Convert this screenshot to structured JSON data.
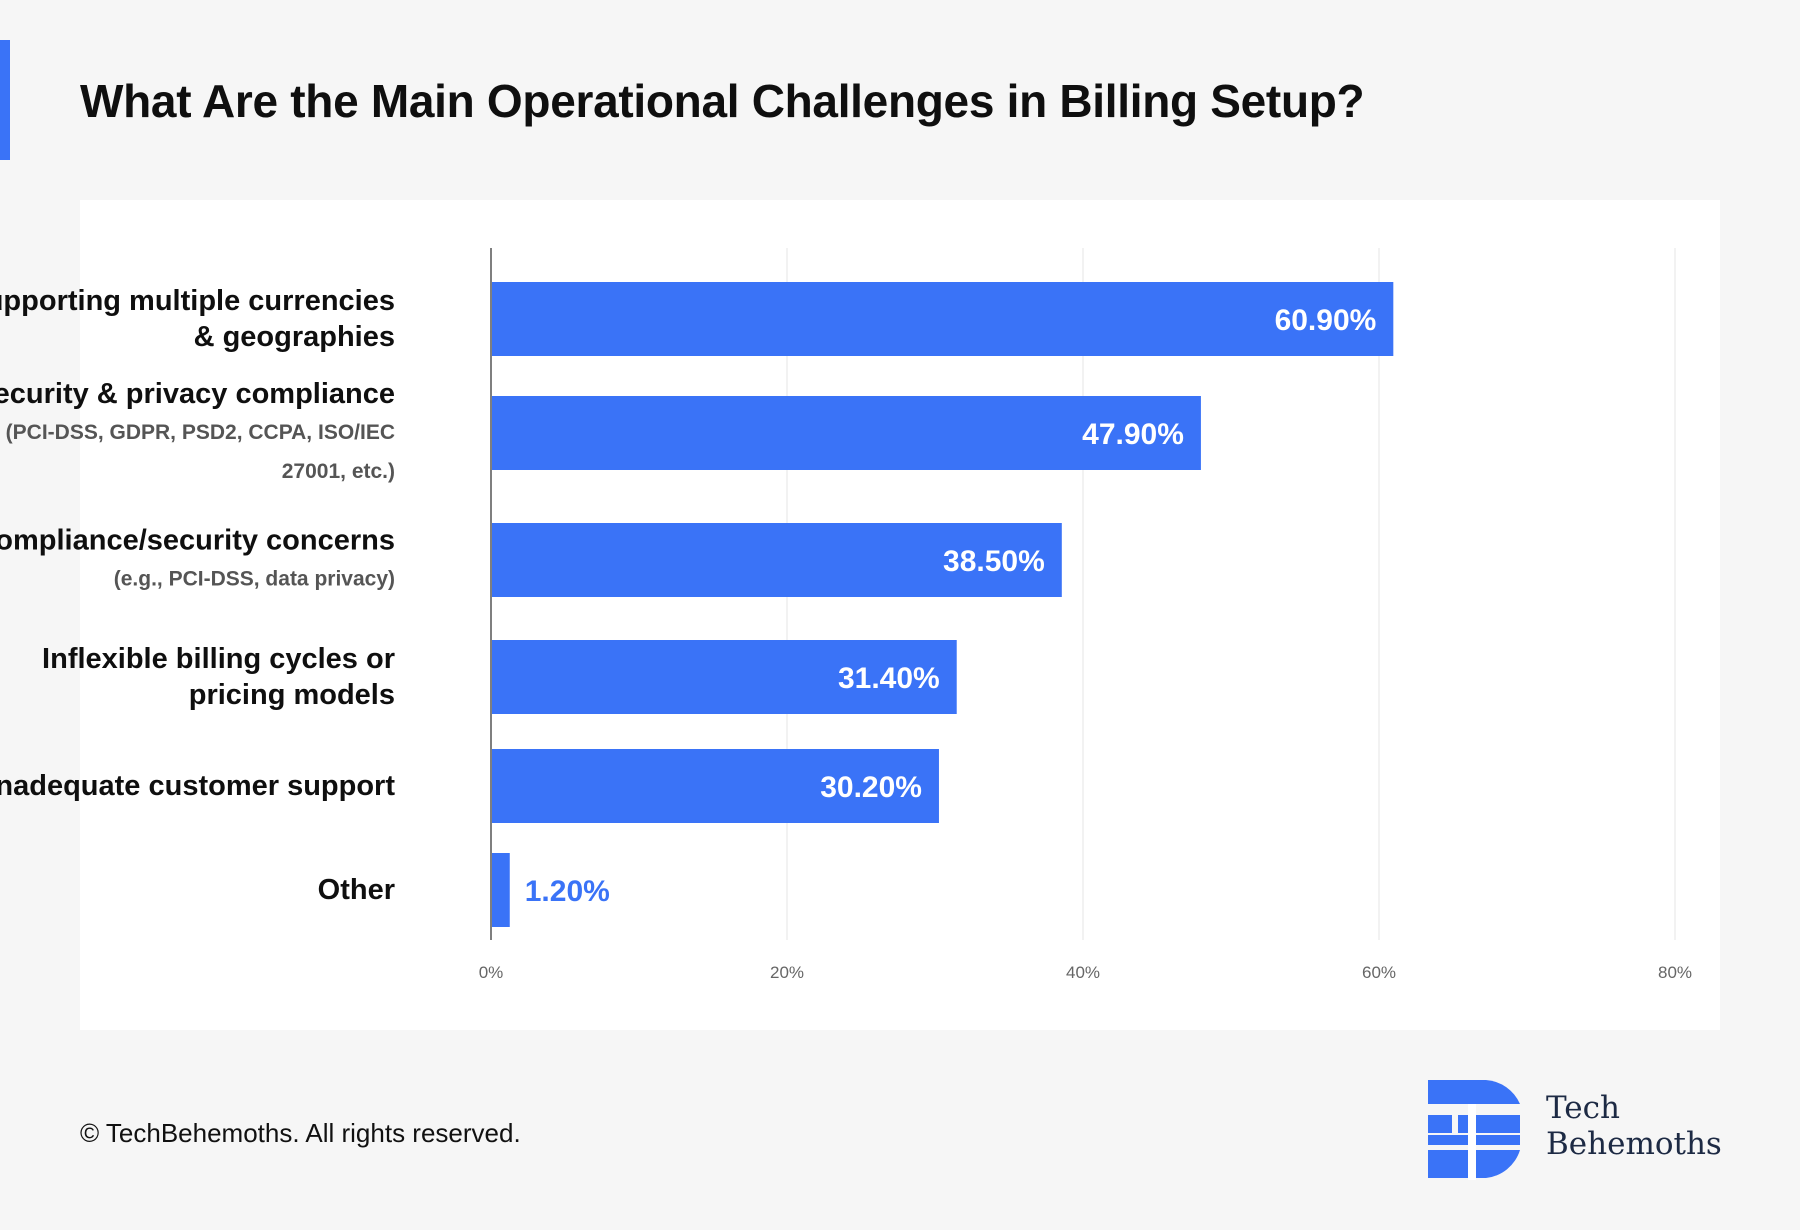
{
  "title": "What Are the Main Operational Challenges in Billing Setup?",
  "colors": {
    "accent": "#3a73f7",
    "bar": "#3a73f7",
    "background": "#f6f6f6"
  },
  "chart_data": {
    "type": "bar",
    "orientation": "horizontal",
    "categories": [
      {
        "main": "Supporting multiple currencies & geographies",
        "note": ""
      },
      {
        "main": "Security & privacy compliance",
        "note": "(PCI-DSS, GDPR, PSD2, CCPA, ISO/IEC 27001, etc.)"
      },
      {
        "main": "Compliance/security concerns",
        "note": "(e.g., PCI-DSS, data privacy)"
      },
      {
        "main": "Inflexible billing cycles or pricing models",
        "note": ""
      },
      {
        "main": "Inadequate customer support",
        "note": ""
      },
      {
        "main": "Other",
        "note": ""
      }
    ],
    "values": [
      60.9,
      47.9,
      38.5,
      31.4,
      30.2,
      1.2
    ],
    "value_labels": [
      "60.90%",
      "47.90%",
      "38.50%",
      "31.40%",
      "30.20%",
      "1.20%"
    ],
    "xlim": [
      0,
      80
    ],
    "xticks": [
      "0%",
      "20%",
      "40%",
      "60%",
      "80%"
    ],
    "grid": true
  },
  "footer": {
    "copyright": "© TechBehemoths. All rights reserved.",
    "logo_line1": "Tech",
    "logo_line2": "Behemoths"
  }
}
